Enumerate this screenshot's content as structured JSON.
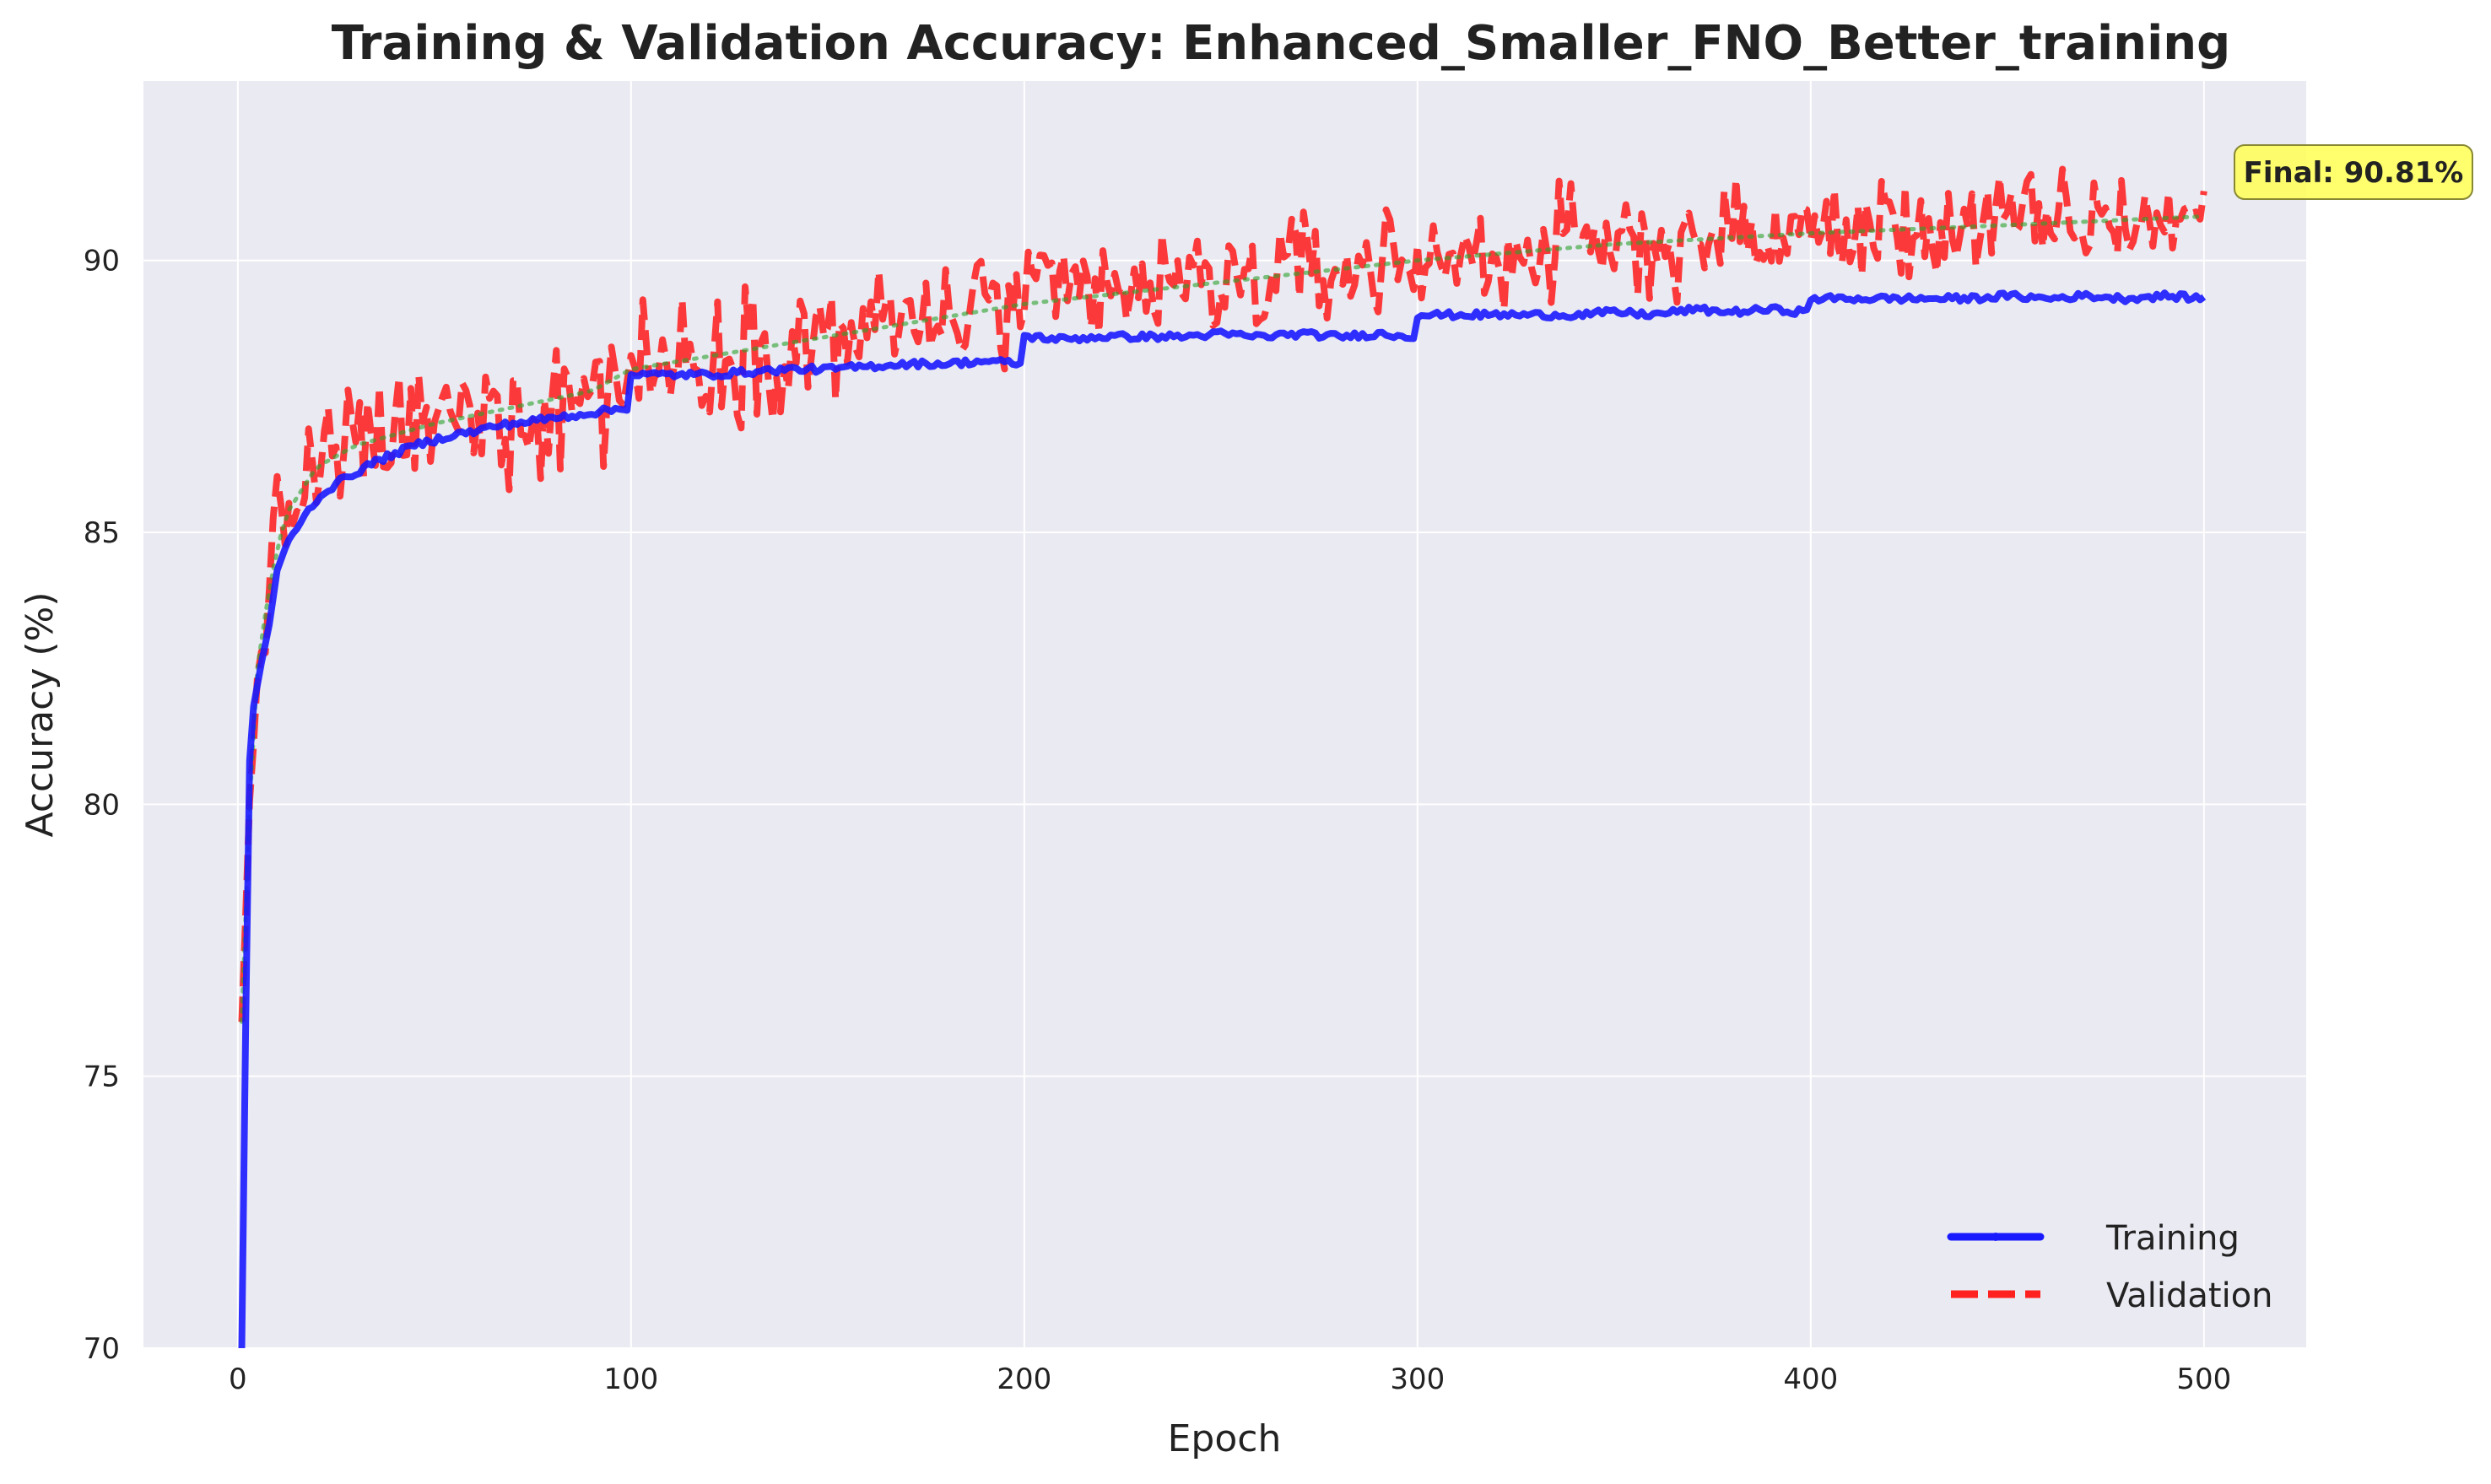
{
  "chart_data": {
    "type": "line",
    "title": "Training & Validation Accuracy: Enhanced_Smaller_FNO_Better_training",
    "xlabel": "Epoch",
    "ylabel": "Accuracy (%)",
    "xlim": [
      -24,
      526
    ],
    "ylim": [
      70,
      93.3
    ],
    "xticks": [
      "0",
      "100",
      "200",
      "300",
      "400",
      "500"
    ],
    "yticks": [
      "70",
      "75",
      "80",
      "85",
      "90"
    ],
    "grid": true,
    "legend_position": "lower-right",
    "background": "#eaeaf2",
    "annotation": {
      "text": "Final: 90.81%",
      "x": 500,
      "y": 90.81
    },
    "series": [
      {
        "name": "Training",
        "color": "#0000ff",
        "style": "solid",
        "x": [
          1,
          2,
          3,
          4,
          6,
          8,
          10,
          12,
          15,
          18,
          20,
          25,
          30,
          35,
          40,
          45,
          50,
          55,
          60,
          65,
          70,
          75,
          80,
          85,
          90,
          95,
          99,
          100,
          101,
          110,
          120,
          130,
          140,
          150,
          160,
          170,
          180,
          190,
          199,
          200,
          201,
          210,
          220,
          230,
          240,
          250,
          260,
          270,
          280,
          290,
          299,
          300,
          301,
          310,
          320,
          330,
          340,
          350,
          360,
          370,
          380,
          390,
          399,
          400,
          401,
          410,
          420,
          430,
          440,
          450,
          460,
          470,
          480,
          490,
          500
        ],
        "values": [
          70.0,
          76.0,
          80.8,
          81.8,
          82.6,
          83.3,
          84.3,
          84.7,
          85.1,
          85.4,
          85.6,
          85.9,
          86.1,
          86.3,
          86.45,
          86.6,
          86.7,
          86.8,
          86.85,
          86.95,
          87.0,
          87.05,
          87.1,
          87.15,
          87.2,
          87.25,
          87.3,
          87.9,
          87.9,
          87.9,
          87.9,
          87.95,
          88.0,
          88.0,
          88.05,
          88.1,
          88.1,
          88.15,
          88.1,
          88.6,
          88.6,
          88.55,
          88.6,
          88.6,
          88.6,
          88.65,
          88.6,
          88.65,
          88.6,
          88.65,
          88.6,
          89.0,
          89.0,
          89.0,
          89.0,
          89.0,
          89.0,
          89.05,
          89.0,
          89.1,
          89.05,
          89.1,
          89.05,
          89.3,
          89.3,
          89.3,
          89.3,
          89.3,
          89.3,
          89.35,
          89.3,
          89.35,
          89.3,
          89.35,
          89.3
        ]
      },
      {
        "name": "Validation",
        "color": "#ff0000",
        "style": "dashed",
        "trend": [
          [
            1,
            76.0
          ],
          [
            3,
            80.0
          ],
          [
            5,
            82.5
          ],
          [
            8,
            84.0
          ],
          [
            12,
            85.3
          ],
          [
            20,
            86.2
          ],
          [
            30,
            86.6
          ],
          [
            50,
            87.0
          ],
          [
            70,
            87.3
          ],
          [
            90,
            87.6
          ],
          [
            100,
            88.0
          ],
          [
            150,
            88.6
          ],
          [
            200,
            89.2
          ],
          [
            250,
            89.6
          ],
          [
            300,
            90.0
          ],
          [
            350,
            90.3
          ],
          [
            400,
            90.5
          ],
          [
            450,
            90.65
          ],
          [
            500,
            90.81
          ]
        ],
        "noise": [
          [
            1,
            0.1
          ],
          [
            10,
            0.6
          ],
          [
            50,
            0.55
          ],
          [
            80,
            0.8
          ],
          [
            100,
            0.6
          ],
          [
            200,
            0.55
          ],
          [
            300,
            0.5
          ],
          [
            500,
            0.45
          ]
        ]
      },
      {
        "color": "#2ca02c",
        "style": "dotted",
        "trend": [
          [
            1,
            76.0
          ],
          [
            3,
            80.0
          ],
          [
            5,
            82.5
          ],
          [
            8,
            84.0
          ],
          [
            12,
            85.3
          ],
          [
            20,
            86.2
          ],
          [
            30,
            86.6
          ],
          [
            50,
            87.0
          ],
          [
            70,
            87.3
          ],
          [
            90,
            87.6
          ],
          [
            100,
            88.0
          ],
          [
            150,
            88.6
          ],
          [
            200,
            89.2
          ],
          [
            250,
            89.6
          ],
          [
            300,
            90.0
          ],
          [
            350,
            90.3
          ],
          [
            400,
            90.5
          ],
          [
            450,
            90.65
          ],
          [
            500,
            90.81
          ]
        ]
      }
    ]
  }
}
